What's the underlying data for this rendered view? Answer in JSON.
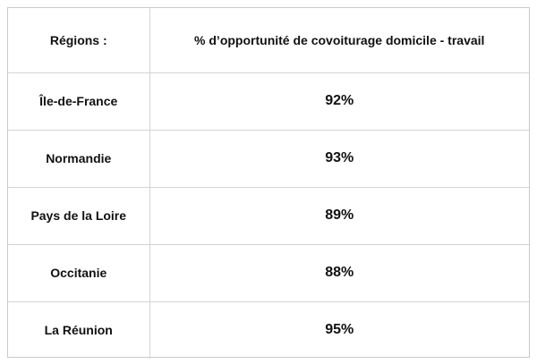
{
  "table": {
    "headers": {
      "region": "Régions :",
      "percentage": "% d’opportunité de covoiturage domicile - travail"
    },
    "rows": [
      {
        "region": "Île-de-France",
        "value": "92%"
      },
      {
        "region": "Normandie",
        "value": "93%"
      },
      {
        "region": "Pays de la Loire",
        "value": "89%"
      },
      {
        "region": "Occitanie",
        "value": "88%"
      },
      {
        "region": "La Réunion",
        "value": "95%"
      }
    ]
  }
}
